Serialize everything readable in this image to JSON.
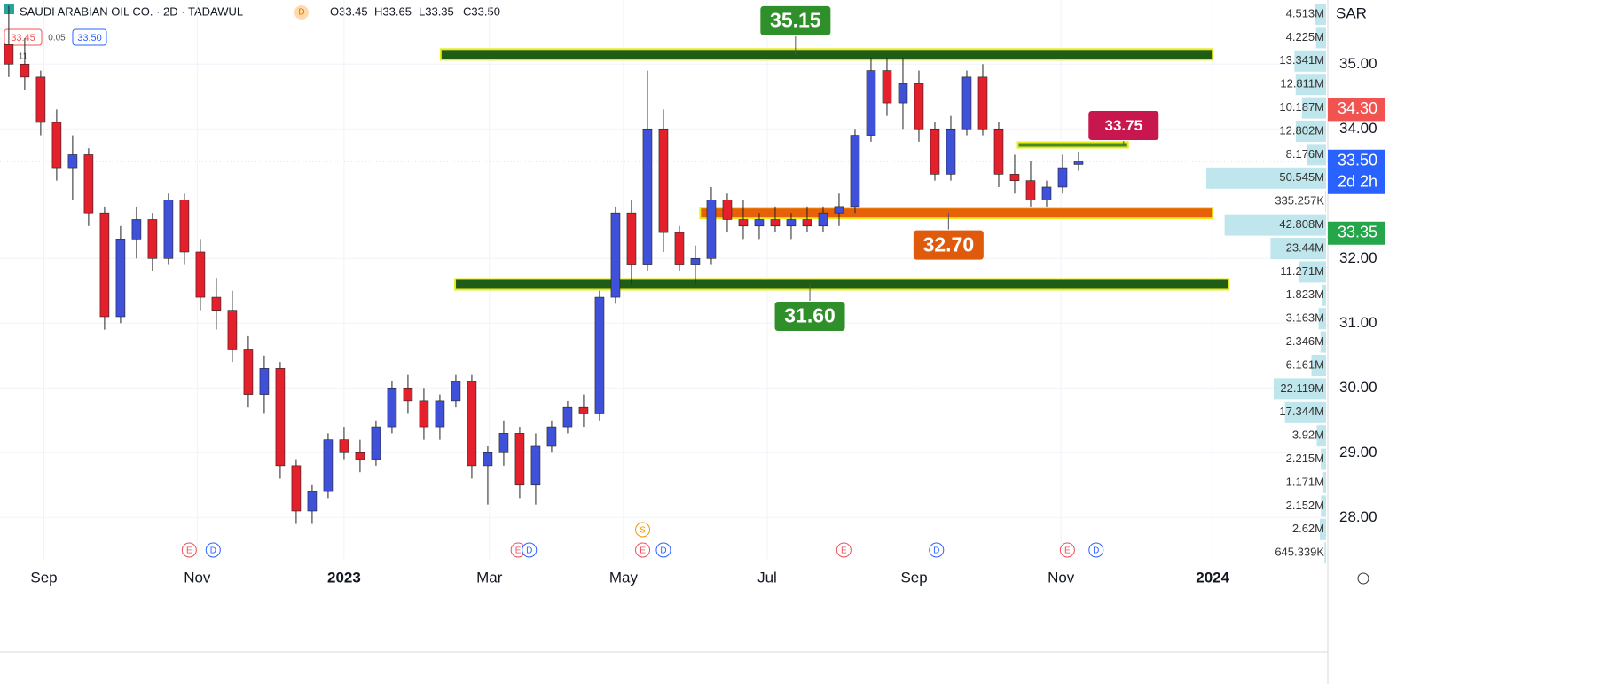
{
  "header": {
    "symbol": "SAUDI ARABIAN OIL CO. · 2D · TADAWUL",
    "interval_badge": "D",
    "ohlc": [
      "O33.45",
      "H33.65",
      "L33.35",
      "C33.50"
    ],
    "bid": "33.45",
    "spread": "0.05",
    "ask": "33.50",
    "count": "11"
  },
  "chart_data": {
    "type": "candlestick",
    "currency": "SAR",
    "up_color": "#3f51d9",
    "down_color": "#e3202b",
    "xlim": [
      -0.55,
      82.5
    ],
    "ylim": [
      27.36,
      35.99
    ],
    "xticks": [
      {
        "value": 2.2,
        "label": "Sep"
      },
      {
        "value": 11.8,
        "label": "Nov"
      },
      {
        "value": 21,
        "label": "2023"
      },
      {
        "value": 30.1,
        "label": "Mar"
      },
      {
        "value": 38.5,
        "label": "May"
      },
      {
        "value": 47.5,
        "label": "Jul"
      },
      {
        "value": 56.7,
        "label": "Sep"
      },
      {
        "value": 65.9,
        "label": "Nov"
      },
      {
        "value": 75.4,
        "label": "2024"
      }
    ],
    "yticks": [
      {
        "value": 35,
        "label": "35.00"
      },
      {
        "value": 34,
        "label": "34.00"
      },
      {
        "value": 32,
        "label": "32.00"
      },
      {
        "value": 31,
        "label": "31.00"
      },
      {
        "value": 30,
        "label": "30.00"
      },
      {
        "value": 29,
        "label": "29.00"
      },
      {
        "value": 28,
        "label": "28.00"
      }
    ],
    "ohlc": [
      [
        35.3,
        35.9,
        34.8,
        35.0
      ],
      [
        35.0,
        35.4,
        34.6,
        34.8
      ],
      [
        34.8,
        34.9,
        33.9,
        34.1
      ],
      [
        34.1,
        34.3,
        33.2,
        33.4
      ],
      [
        33.4,
        33.9,
        32.9,
        33.6
      ],
      [
        33.6,
        33.7,
        32.5,
        32.7
      ],
      [
        32.7,
        32.8,
        30.9,
        31.1
      ],
      [
        31.1,
        32.5,
        31.0,
        32.3
      ],
      [
        32.3,
        32.8,
        32.0,
        32.6
      ],
      [
        32.6,
        32.7,
        31.8,
        32.0
      ],
      [
        32.0,
        33.0,
        31.9,
        32.9
      ],
      [
        32.9,
        33.0,
        31.9,
        32.1
      ],
      [
        32.1,
        32.3,
        31.2,
        31.4
      ],
      [
        31.4,
        31.7,
        30.9,
        31.2
      ],
      [
        31.2,
        31.5,
        30.4,
        30.6
      ],
      [
        30.6,
        30.8,
        29.7,
        29.9
      ],
      [
        29.9,
        30.5,
        29.6,
        30.3
      ],
      [
        30.3,
        30.4,
        28.6,
        28.8
      ],
      [
        28.8,
        28.9,
        27.9,
        28.1
      ],
      [
        28.1,
        28.5,
        27.9,
        28.4
      ],
      [
        28.4,
        29.3,
        28.3,
        29.2
      ],
      [
        29.2,
        29.4,
        28.9,
        29.0
      ],
      [
        29.0,
        29.2,
        28.7,
        28.9
      ],
      [
        28.9,
        29.5,
        28.8,
        29.4
      ],
      [
        29.4,
        30.1,
        29.3,
        30.0
      ],
      [
        30.0,
        30.2,
        29.6,
        29.8
      ],
      [
        29.8,
        30.0,
        29.2,
        29.4
      ],
      [
        29.4,
        29.9,
        29.2,
        29.8
      ],
      [
        29.8,
        30.2,
        29.7,
        30.1
      ],
      [
        30.1,
        30.2,
        28.6,
        28.8
      ],
      [
        28.8,
        29.1,
        28.2,
        29.0
      ],
      [
        29.0,
        29.5,
        28.8,
        29.3
      ],
      [
        29.3,
        29.4,
        28.3,
        28.5
      ],
      [
        28.5,
        29.3,
        28.2,
        29.1
      ],
      [
        29.1,
        29.5,
        29.0,
        29.4
      ],
      [
        29.4,
        29.8,
        29.3,
        29.7
      ],
      [
        29.7,
        29.9,
        29.4,
        29.6
      ],
      [
        29.6,
        31.5,
        29.5,
        31.4
      ],
      [
        31.4,
        32.8,
        31.3,
        32.7
      ],
      [
        32.7,
        32.9,
        31.6,
        31.9
      ],
      [
        31.9,
        34.9,
        31.8,
        34.0
      ],
      [
        34.0,
        34.3,
        32.1,
        32.4
      ],
      [
        32.4,
        32.5,
        31.8,
        31.9
      ],
      [
        31.9,
        32.2,
        31.6,
        32.0
      ],
      [
        32.0,
        33.1,
        31.9,
        32.9
      ],
      [
        32.9,
        33.0,
        32.4,
        32.6
      ],
      [
        32.6,
        32.9,
        32.3,
        32.5
      ],
      [
        32.5,
        32.7,
        32.3,
        32.6
      ],
      [
        32.6,
        32.8,
        32.4,
        32.5
      ],
      [
        32.5,
        32.7,
        32.3,
        32.6
      ],
      [
        32.6,
        32.8,
        32.4,
        32.5
      ],
      [
        32.5,
        32.8,
        32.4,
        32.7
      ],
      [
        32.7,
        33.0,
        32.5,
        32.8
      ],
      [
        32.8,
        34.0,
        32.7,
        33.9
      ],
      [
        33.9,
        35.1,
        33.8,
        34.9
      ],
      [
        34.9,
        35.1,
        34.2,
        34.4
      ],
      [
        34.4,
        35.1,
        34.0,
        34.7
      ],
      [
        34.7,
        34.9,
        33.8,
        34.0
      ],
      [
        34.0,
        34.1,
        33.2,
        33.3
      ],
      [
        33.3,
        34.2,
        33.2,
        34.0
      ],
      [
        34.0,
        34.9,
        33.9,
        34.8
      ],
      [
        34.8,
        35.0,
        33.9,
        34.0
      ],
      [
        34.0,
        34.1,
        33.1,
        33.3
      ],
      [
        33.3,
        33.6,
        33.0,
        33.2
      ],
      [
        33.2,
        33.5,
        32.8,
        32.9
      ],
      [
        32.9,
        33.2,
        32.8,
        33.1
      ],
      [
        33.1,
        33.6,
        33.0,
        33.4
      ],
      [
        33.45,
        33.65,
        33.35,
        33.5
      ]
    ],
    "levels": [
      {
        "value": 35.15,
        "label": "35.15",
        "x": [
          27.05,
          75.4
        ],
        "color": "#1f5d17",
        "label_color": "#2f8f2a"
      },
      {
        "value": 32.7,
        "label": "32.70",
        "x": [
          43.3,
          75.4
        ],
        "color": "#e8600a",
        "label_color": "#e05a0c"
      },
      {
        "value": 31.6,
        "label": "31.60",
        "x": [
          27.95,
          76.4
        ],
        "color": "#1f5d17",
        "label_color": "#2f8f2a"
      },
      {
        "value": 33.75,
        "label": "33.75",
        "x": [
          63.2,
          70.1
        ],
        "color": "#4a8a2a",
        "label_color": "#c8174f"
      }
    ],
    "price_badges": [
      {
        "value": 34.3,
        "label": "34.30",
        "color": "#f05350"
      },
      {
        "value": 33.5,
        "label": "33.50",
        "sub": "2d 2h",
        "color": "#2962ff"
      },
      {
        "value": 33.35,
        "label": "33.35",
        "color": "#26a64a"
      }
    ],
    "volume_profile": [
      {
        "value": 4513000,
        "label": "4.513M"
      },
      {
        "value": 4225000,
        "label": "4.225M"
      },
      {
        "value": 13341000,
        "label": "13.341M"
      },
      {
        "value": 12811000,
        "label": "12.811M"
      },
      {
        "value": 10187000,
        "label": "10.187M"
      },
      {
        "value": 12802000,
        "label": "12.802M"
      },
      {
        "value": 8176000,
        "label": "8.176M"
      },
      {
        "value": 50545000,
        "label": "50.545M"
      },
      {
        "value": 335257,
        "label": "335.257K"
      },
      {
        "value": 42808000,
        "label": "42.808M"
      },
      {
        "value": 23440000,
        "label": "23.44M"
      },
      {
        "value": 11271000,
        "label": "11.271M"
      },
      {
        "value": 1823000,
        "label": "1.823M"
      },
      {
        "value": 3163000,
        "label": "3.163M"
      },
      {
        "value": 2346000,
        "label": "2.346M"
      },
      {
        "value": 6161000,
        "label": "6.161M"
      },
      {
        "value": 22119000,
        "label": "22.119M"
      },
      {
        "value": 17344000,
        "label": "17.344M"
      },
      {
        "value": 3920000,
        "label": "3.92M"
      },
      {
        "value": 2215000,
        "label": "2.215M"
      },
      {
        "value": 1171000,
        "label": "1.171M"
      },
      {
        "value": 2152000,
        "label": "2.152M"
      },
      {
        "value": 2620000,
        "label": "2.62M"
      },
      {
        "value": 645339,
        "label": "645.339K"
      }
    ],
    "events": [
      {
        "label": "E",
        "x": 11.3
      },
      {
        "label": "D",
        "x": 12.8
      },
      {
        "label": "E",
        "x": 31.9
      },
      {
        "label": "D",
        "x": 32.6
      },
      {
        "label": "S",
        "x": 39.7
      },
      {
        "label": "E",
        "x": 39.7
      },
      {
        "label": "D",
        "x": 41
      },
      {
        "label": "E",
        "x": 52.3
      },
      {
        "label": "D",
        "x": 58.1
      },
      {
        "label": "E",
        "x": 66.3
      },
      {
        "label": "D",
        "x": 68.1
      }
    ]
  }
}
